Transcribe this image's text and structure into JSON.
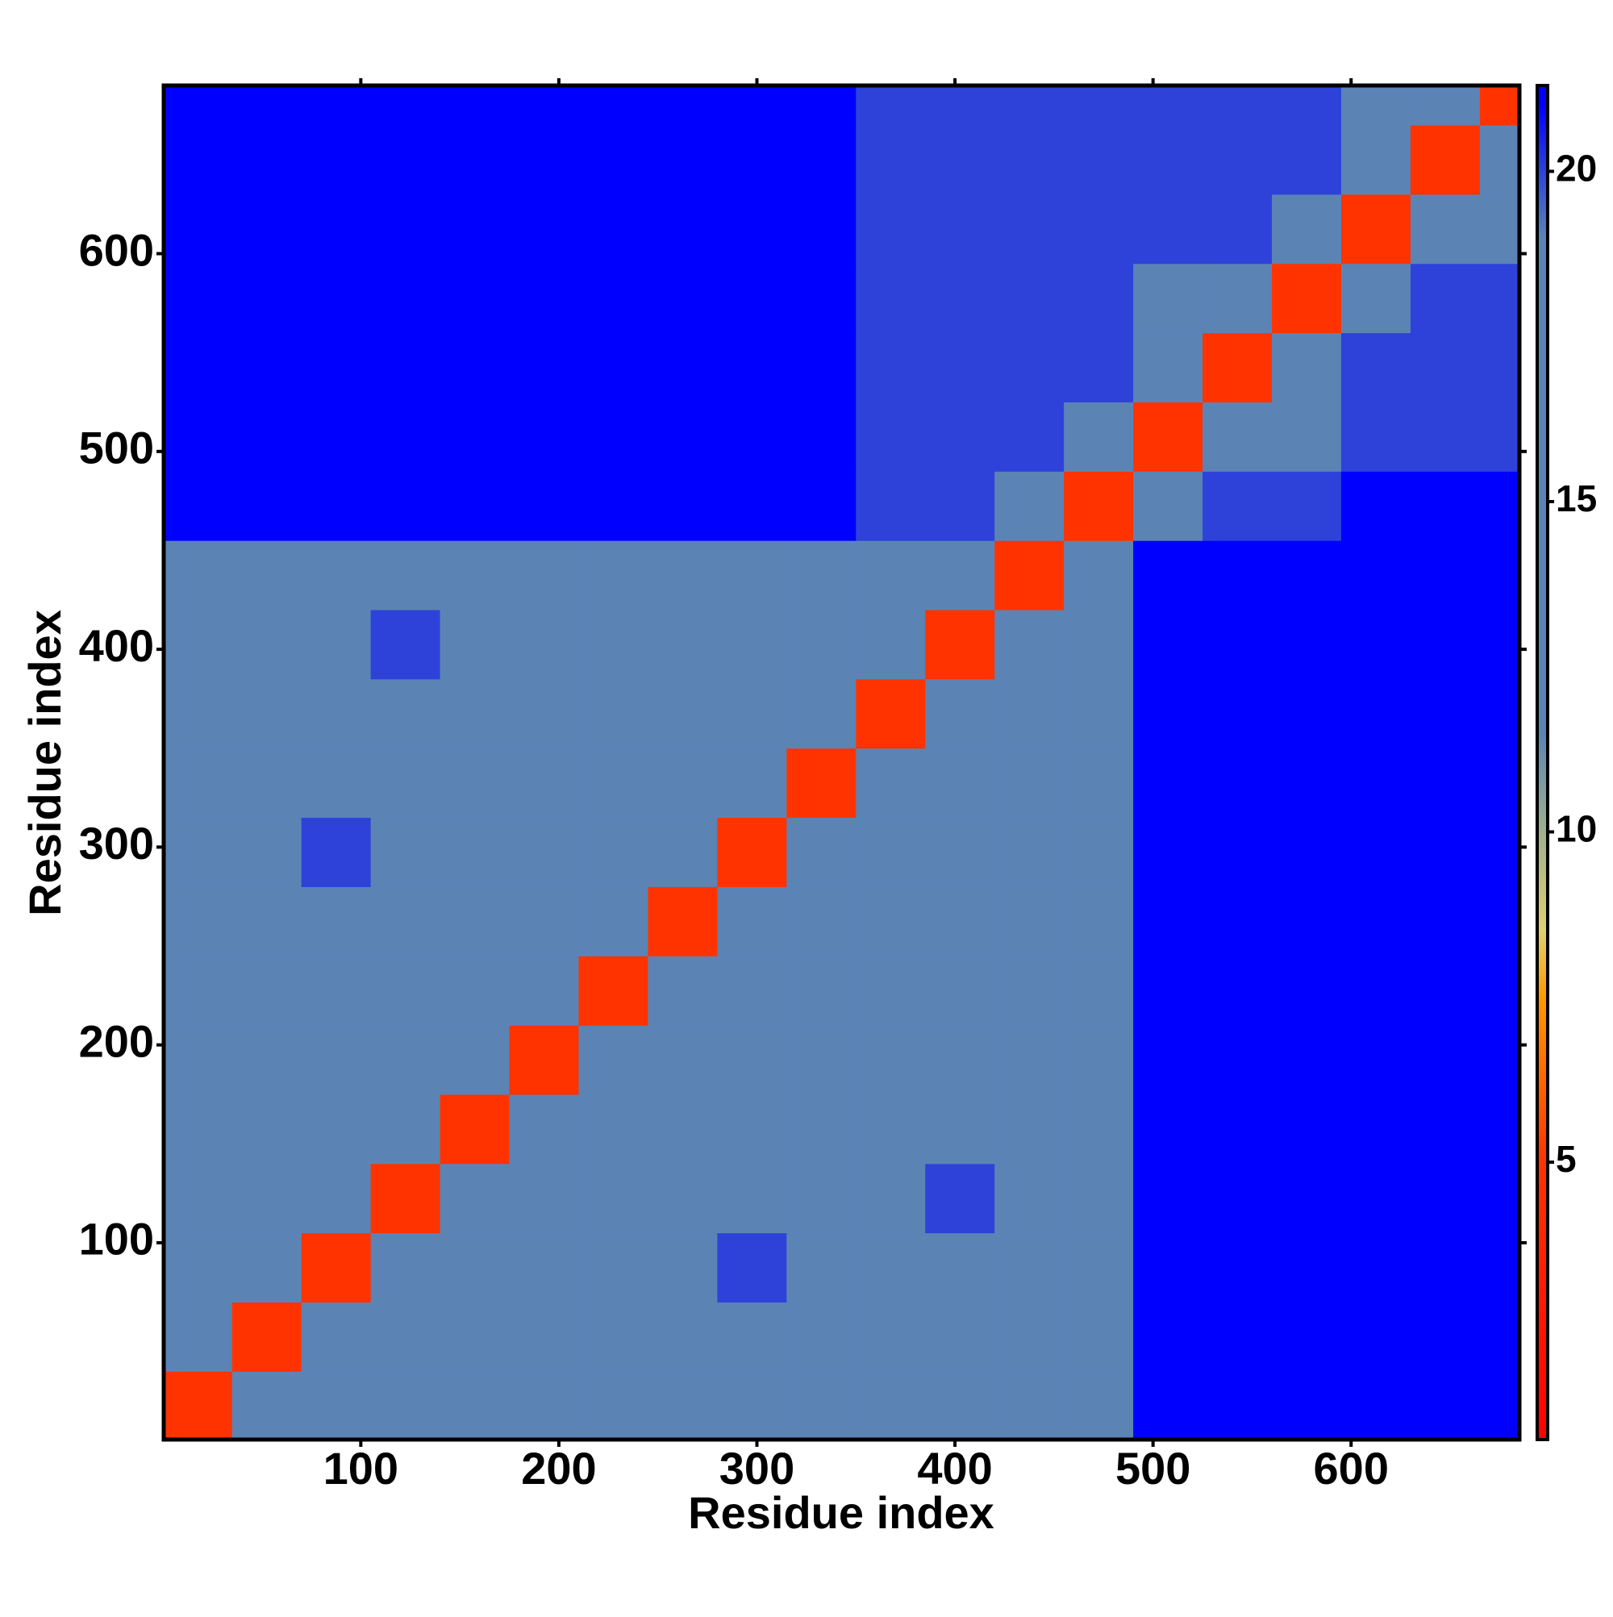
{
  "chart_data": {
    "type": "heatmap",
    "x_label": "Residue index",
    "y_label": "Residue index",
    "xlim": [
      0.5,
      685
    ],
    "ylim": [
      0.5,
      685
    ],
    "xticks": [
      100,
      200,
      300,
      400,
      500,
      600
    ],
    "yticks": [
      100,
      200,
      300,
      400,
      500,
      600
    ],
    "xbins": [
      0.5,
      35,
      70,
      105,
      140,
      175,
      210,
      245,
      280,
      315,
      350,
      385,
      420,
      455,
      490,
      525,
      560,
      595,
      630,
      665,
      685
    ],
    "ybins": [
      0.5,
      35,
      70,
      105,
      140,
      175,
      210,
      245,
      280,
      315,
      350,
      385,
      420,
      455,
      490,
      525,
      560,
      595,
      630,
      665,
      685
    ],
    "z": [
      [
        5,
        12,
        15,
        16,
        17,
        16,
        17,
        18,
        19,
        18,
        18,
        17,
        16,
        19,
        21,
        21,
        21,
        21,
        21,
        21
      ],
      [
        12,
        5,
        12,
        15,
        16,
        17,
        17,
        18,
        19,
        19,
        18,
        17,
        16,
        19,
        21,
        21,
        21,
        21,
        21,
        21
      ],
      [
        15,
        12,
        5,
        12,
        15,
        16,
        17,
        19,
        20,
        19,
        18,
        19,
        17,
        19,
        21,
        21,
        21,
        21,
        21,
        21
      ],
      [
        16,
        15,
        12,
        5,
        12,
        15,
        17,
        18,
        19,
        19,
        18,
        20,
        18,
        19,
        21,
        21,
        21,
        21,
        21,
        21
      ],
      [
        17,
        16,
        15,
        12,
        5,
        12,
        14,
        16,
        17,
        18,
        17,
        18,
        16,
        19,
        21,
        21,
        21,
        21,
        21,
        21
      ],
      [
        16,
        17,
        16,
        15,
        12,
        5,
        12,
        15,
        16,
        17,
        17,
        17,
        17,
        19,
        21,
        21,
        21,
        21,
        21,
        21
      ],
      [
        17,
        17,
        17,
        17,
        14,
        12,
        5,
        12,
        15,
        16,
        17,
        16,
        16,
        19,
        21,
        21,
        21,
        21,
        21,
        21
      ],
      [
        18,
        18,
        19,
        18,
        16,
        15,
        12,
        5,
        12,
        14,
        15,
        16,
        16,
        19,
        21,
        21,
        21,
        21,
        21,
        21
      ],
      [
        19,
        19,
        20,
        19,
        17,
        16,
        15,
        12,
        5,
        12,
        15,
        16,
        17,
        19,
        21,
        21,
        21,
        21,
        21,
        21
      ],
      [
        18,
        19,
        19,
        19,
        18,
        17,
        16,
        14,
        12,
        5,
        12,
        15,
        16,
        19,
        21,
        21,
        21,
        21,
        21,
        21
      ],
      [
        18,
        18,
        18,
        18,
        17,
        17,
        17,
        15,
        15,
        12,
        5,
        12,
        15,
        19,
        21,
        21,
        21,
        21,
        21,
        21
      ],
      [
        17,
        17,
        19,
        20,
        18,
        17,
        16,
        16,
        16,
        15,
        12,
        5,
        12,
        18,
        21,
        21,
        21,
        21,
        21,
        21
      ],
      [
        16,
        16,
        17,
        18,
        16,
        17,
        16,
        16,
        17,
        16,
        15,
        12,
        5,
        12,
        21,
        21,
        21,
        21,
        21,
        21
      ],
      [
        21,
        21,
        21,
        21,
        21,
        21,
        21,
        21,
        21,
        21,
        20,
        20,
        16,
        5,
        12,
        20,
        20,
        21,
        21,
        21
      ],
      [
        21,
        21,
        21,
        21,
        21,
        21,
        21,
        21,
        21,
        21,
        20,
        20,
        20,
        12,
        5,
        12,
        16,
        20,
        20,
        20
      ],
      [
        21,
        21,
        21,
        21,
        21,
        21,
        21,
        21,
        21,
        21,
        20,
        20,
        20,
        20,
        12,
        5,
        12,
        20,
        20,
        20
      ],
      [
        21,
        21,
        21,
        21,
        21,
        21,
        21,
        21,
        21,
        21,
        20,
        20,
        20,
        20,
        16,
        12,
        5,
        12,
        20,
        20
      ],
      [
        21,
        21,
        21,
        21,
        21,
        21,
        21,
        21,
        21,
        21,
        20,
        20,
        20,
        20,
        20,
        20,
        12,
        5,
        12,
        16
      ],
      [
        21,
        21,
        21,
        21,
        21,
        21,
        21,
        21,
        21,
        21,
        20,
        20,
        20,
        20,
        20,
        20,
        20,
        12,
        5,
        12
      ],
      [
        21,
        21,
        21,
        21,
        21,
        21,
        21,
        21,
        21,
        21,
        20,
        20,
        20,
        20,
        20,
        20,
        20,
        15,
        12,
        5
      ]
    ],
    "zlim": [
      0.8,
      21.3
    ],
    "zticks": [
      5,
      10,
      15,
      20
    ],
    "colorscale": [
      [
        0.8,
        "#ff0000"
      ],
      [
        5,
        "#ff3300"
      ],
      [
        7.5,
        "#ff9900"
      ],
      [
        8.5,
        "#e0d070"
      ],
      [
        10,
        "#a0b090"
      ],
      [
        11.5,
        "#5b84b5"
      ],
      [
        19,
        "#5b84b5"
      ],
      [
        21,
        "#0000ff"
      ]
    ]
  }
}
